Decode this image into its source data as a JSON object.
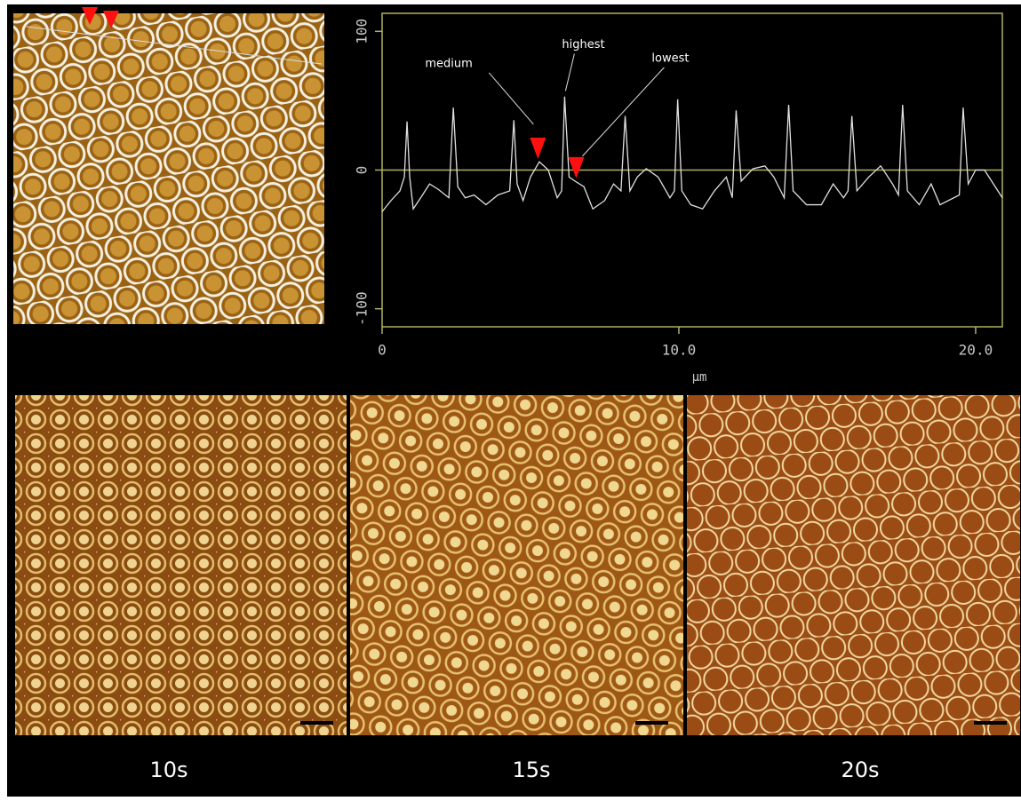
{
  "chart_data": {
    "type": "line",
    "xlabel": "µm",
    "xlim": [
      0,
      20.9
    ],
    "ylim": [
      -113,
      113
    ],
    "xticks": [
      0,
      {
        "value": 10,
        "label": "10.0"
      },
      {
        "value": 20,
        "label": "20.0"
      }
    ],
    "yticks": [
      -100,
      0,
      100
    ],
    "zero_line": true,
    "frame_color": "#b0b060",
    "x": [
      0,
      0.3,
      0.6,
      0.75,
      0.84,
      0.93,
      1.05,
      1.3,
      1.6,
      1.9,
      2.25,
      2.4,
      2.55,
      2.8,
      3.1,
      3.5,
      3.9,
      4.3,
      4.44,
      4.55,
      4.75,
      5.0,
      5.3,
      5.6,
      5.9,
      6.05,
      6.15,
      6.3,
      6.5,
      6.8,
      7.1,
      7.5,
      7.8,
      8.05,
      8.19,
      8.35,
      8.6,
      8.9,
      9.3,
      9.7,
      9.85,
      9.96,
      10.1,
      10.4,
      10.8,
      11.2,
      11.6,
      11.8,
      11.93,
      12.1,
      12.5,
      12.9,
      13.2,
      13.55,
      13.7,
      13.85,
      14.3,
      14.8,
      15.2,
      15.55,
      15.7,
      15.83,
      16.0,
      16.4,
      16.8,
      17.2,
      17.4,
      17.54,
      17.7,
      18.1,
      18.5,
      18.8,
      19.45,
      19.58,
      19.75,
      20.0,
      20.3,
      20.9
    ],
    "series": [
      {
        "color": "#e0e0e0",
        "values": [
          -30,
          -22,
          -15,
          -5,
          35,
          -5,
          -28,
          -20,
          -10,
          -14,
          -20,
          45,
          -12,
          -20,
          -18,
          -25,
          -18,
          -15,
          36,
          -10,
          -22,
          -5,
          6,
          0,
          -20,
          -15,
          53,
          -5,
          -8,
          -12,
          -28,
          -22,
          -10,
          -15,
          39,
          -15,
          -5,
          1,
          -5,
          -20,
          -15,
          51,
          -15,
          -25,
          -28,
          -15,
          -5,
          -20,
          43,
          -8,
          1,
          3,
          -5,
          -20,
          47,
          -15,
          -25,
          -25,
          -10,
          -20,
          -15,
          39,
          -15,
          -5,
          3,
          -10,
          -18,
          47,
          -15,
          -25,
          -10,
          -25,
          -18,
          45,
          -10,
          0,
          0,
          -20
        ]
      }
    ],
    "markers": [
      {
        "x": 5.25,
        "y": 8
      },
      {
        "x": 6.54,
        "y": -6
      }
    ],
    "marker_color": "#ff1010",
    "annotations": [
      {
        "text": "medium",
        "x": 5.1,
        "y": 33
      },
      {
        "text": "highest",
        "x": 6.18,
        "y": 57
      },
      {
        "text": "lowest",
        "x": 6.75,
        "y": 10
      }
    ]
  },
  "panels": [
    {
      "label": "10s"
    },
    {
      "label": "15s"
    },
    {
      "label": "20s"
    }
  ]
}
